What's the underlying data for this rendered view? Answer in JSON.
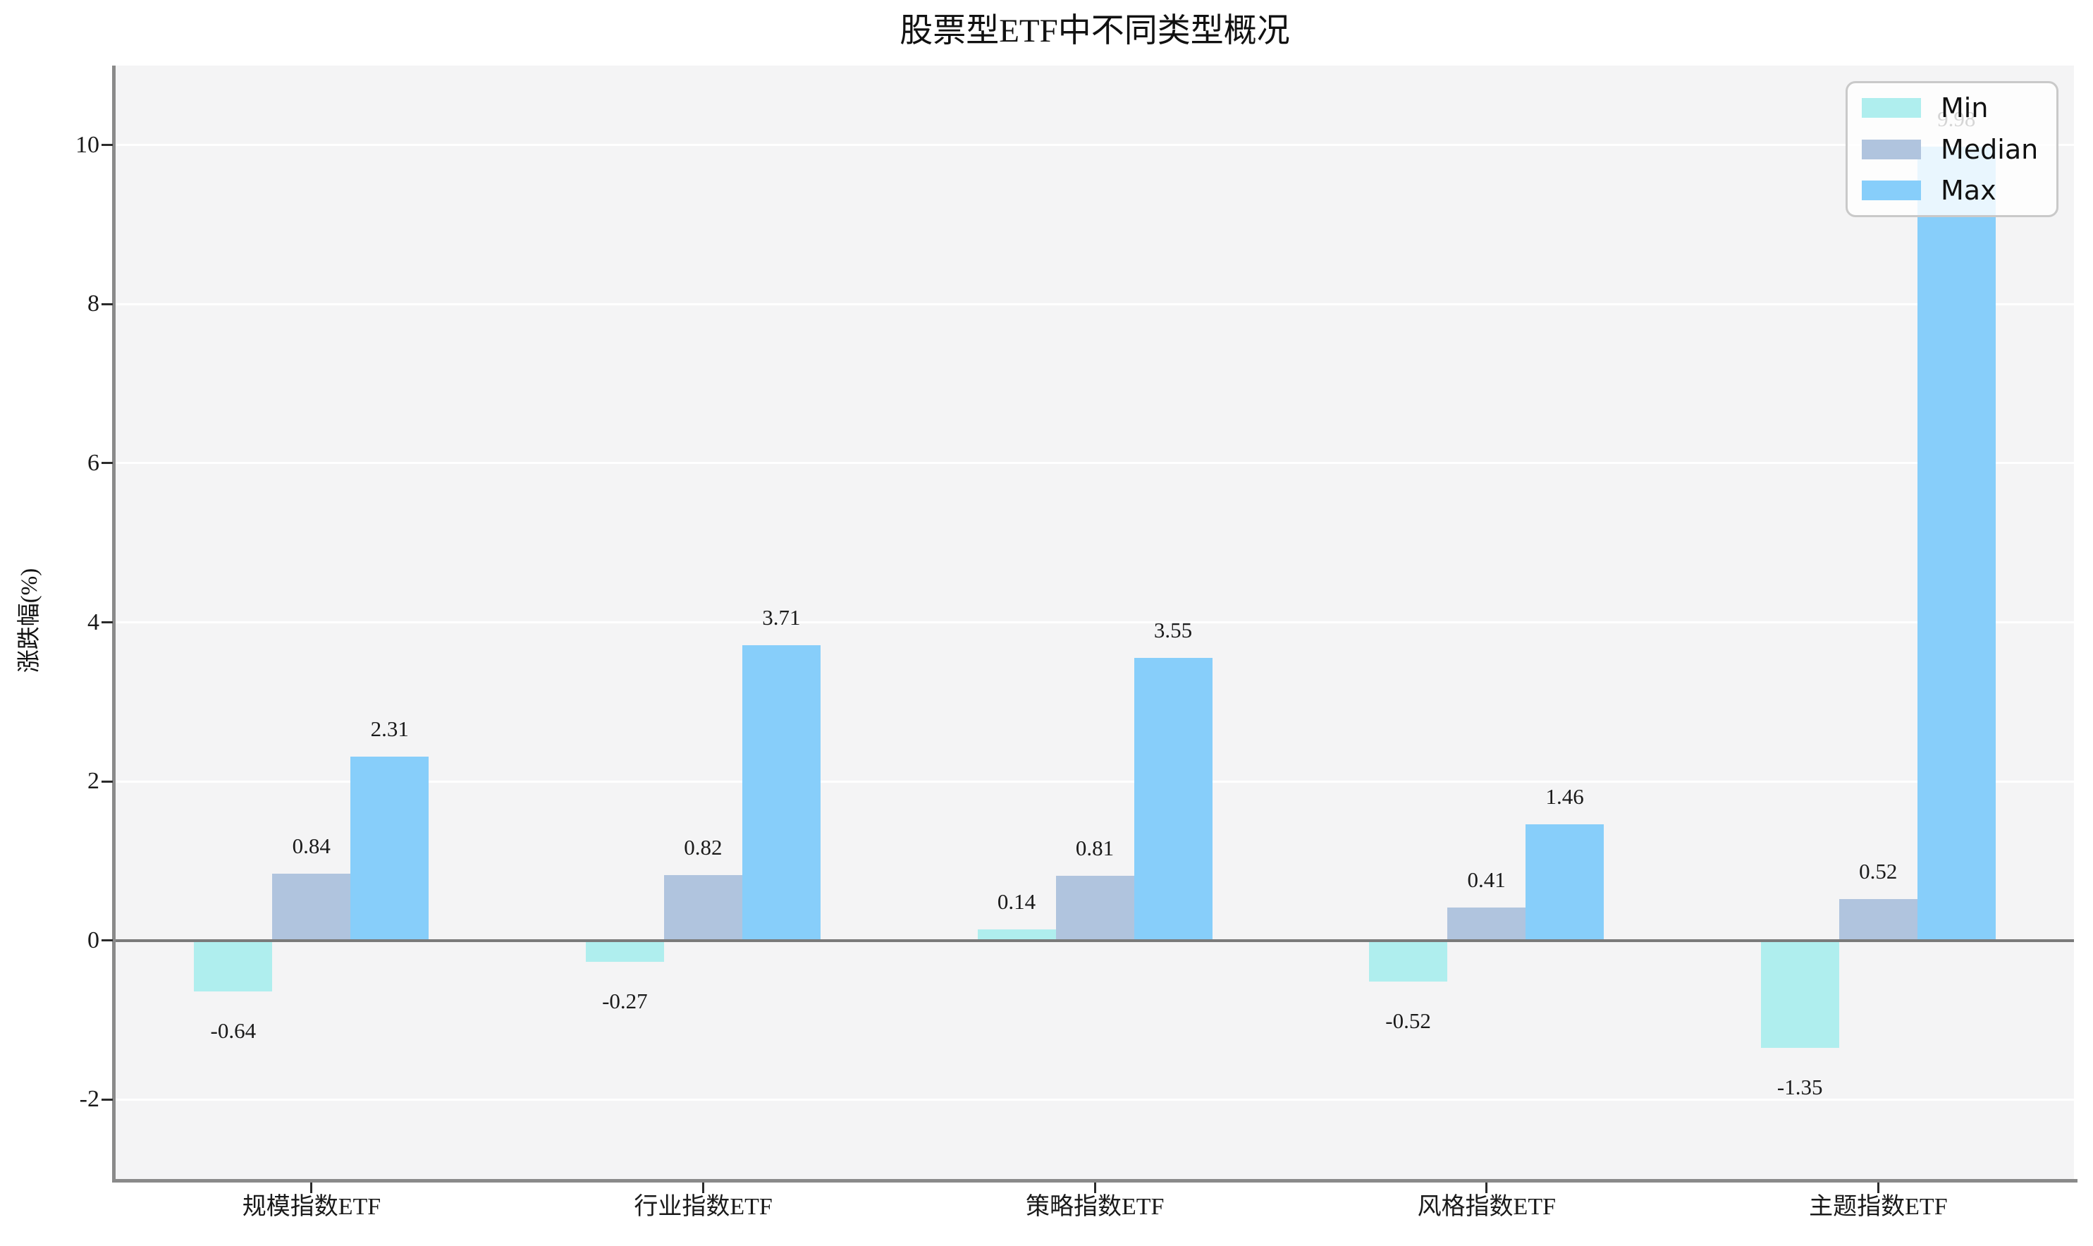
{
  "figure": {
    "title": "股票型ETF中不同类型概况"
  },
  "chart_data": {
    "type": "bar",
    "title": "股票型ETF中不同类型概况",
    "xlabel": "",
    "ylabel": "涨跌幅(%)",
    "categories": [
      "规模指数ETF",
      "行业指数ETF",
      "策略指数ETF",
      "风格指数ETF",
      "主题指数ETF"
    ],
    "series": [
      {
        "name": "Min",
        "color": "#AFEEEE",
        "values": [
          -0.64,
          -0.27,
          0.14,
          -0.52,
          -1.35
        ]
      },
      {
        "name": "Median",
        "color": "#B0C4DE",
        "values": [
          0.84,
          0.82,
          0.81,
          0.41,
          0.52
        ]
      },
      {
        "name": "Max",
        "color": "#87CEFA",
        "values": [
          2.31,
          3.71,
          3.55,
          1.46,
          9.98
        ]
      }
    ],
    "value_labels": [
      "-0.64",
      "-0.27",
      "0.14",
      "-0.52",
      "-1.35",
      "0.84",
      "0.82",
      "0.81",
      "0.41",
      "0.52",
      "2.31",
      "3.71",
      "3.55",
      "1.46",
      "9.98"
    ],
    "ylim": [
      -3,
      11
    ],
    "yticks": [
      -2,
      0,
      2,
      4,
      6,
      8,
      10
    ],
    "grid": true,
    "legend": {
      "position": "upper right",
      "entries": [
        "Min",
        "Median",
        "Max"
      ]
    },
    "colors": {
      "plot_bg": "#f4f4f5",
      "grid": "#ffffff",
      "spine": "#8a8a8a",
      "zero_line": "#7a7a7a",
      "tick": "#2b2b2b",
      "text": "#1a1a1a",
      "legend_border": "#c9c9c9"
    }
  }
}
